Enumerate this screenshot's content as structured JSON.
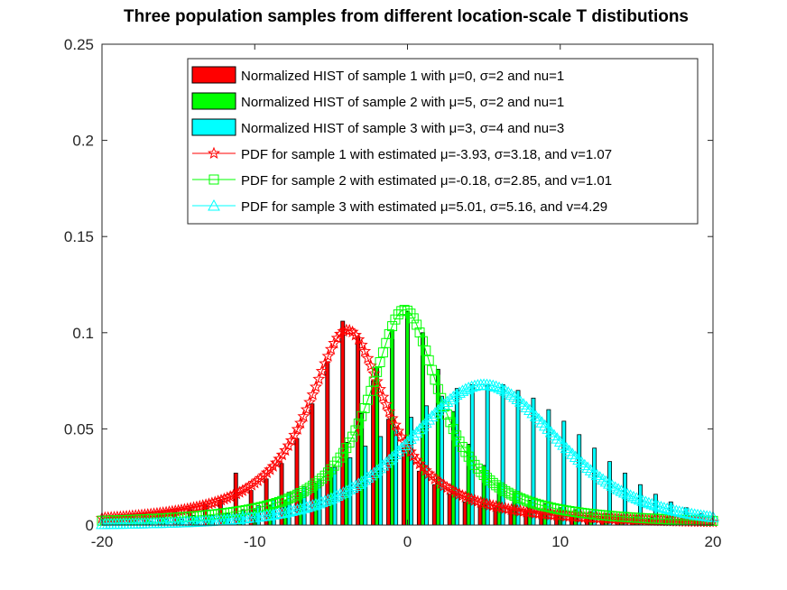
{
  "chart_data": {
    "type": "bar",
    "title": "Three population samples from different location-scale T distibutions",
    "xlabel": "",
    "ylabel": "",
    "xlim": [
      -20,
      20
    ],
    "ylim": [
      0,
      0.25
    ],
    "xticks": [
      -20,
      -10,
      0,
      10,
      20
    ],
    "yticks": [
      0,
      0.05,
      0.1,
      0.15,
      0.2,
      0.25
    ],
    "xtick_labels": [
      "-20",
      "-10",
      "0",
      "10",
      "20"
    ],
    "ytick_labels": [
      "0",
      "0.05",
      "0.1",
      "0.15",
      "0.2",
      "0.25"
    ],
    "grid": false,
    "legend_position": "top-right",
    "histograms": [
      {
        "name": "Normalized HIST of sample 1 with μ=0, σ=2 and nu=1",
        "color": "#ff0000",
        "mu": 0,
        "sigma": 2,
        "nu": 1
      },
      {
        "name": "Normalized HIST of sample 2 with μ=5, σ=2 and nu=1",
        "color": "#00ff00",
        "mu": 5,
        "sigma": 2,
        "nu": 1
      },
      {
        "name": "Normalized HIST of sample 3 with μ=3, σ=4 and nu=3",
        "color": "#00ffff",
        "mu": 3,
        "sigma": 4,
        "nu": 3
      }
    ],
    "hist_bin_centers": [
      -20,
      -19,
      -18,
      -17,
      -16,
      -15,
      -14,
      -13,
      -12,
      -11,
      -10,
      -9,
      -8,
      -7,
      -6,
      -5,
      -4,
      -3,
      -2,
      -1,
      0,
      1,
      2,
      3,
      4,
      5,
      6,
      7,
      8,
      9,
      10,
      11,
      12,
      13,
      14,
      15,
      16,
      17,
      18,
      19,
      20
    ],
    "hist_values": [
      [
        0.004,
        0.005,
        0.005,
        0.006,
        0.006,
        0.007,
        0.008,
        0.011,
        0.013,
        0.027,
        0.018,
        0.024,
        0.032,
        0.045,
        0.063,
        0.085,
        0.106,
        0.098,
        0.075,
        0.055,
        0.041,
        0.028,
        0.021,
        0.016,
        0.012,
        0.01,
        0.009,
        0.008,
        0.007,
        0.006,
        0.005,
        0.005,
        0.005,
        0.004,
        0.004,
        0.004,
        0.003,
        0.003,
        0.003,
        0.003,
        0.002
      ],
      [
        0.003,
        0.003,
        0.004,
        0.004,
        0.004,
        0.004,
        0.005,
        0.005,
        0.006,
        0.006,
        0.008,
        0.01,
        0.013,
        0.017,
        0.022,
        0.03,
        0.043,
        0.058,
        0.082,
        0.101,
        0.111,
        0.1,
        0.081,
        0.059,
        0.042,
        0.031,
        0.022,
        0.017,
        0.013,
        0.011,
        0.009,
        0.008,
        0.007,
        0.006,
        0.005,
        0.005,
        0.004,
        0.004,
        0.004,
        0.003,
        0.003
      ],
      [
        0.001,
        0.002,
        0.002,
        0.002,
        0.003,
        0.003,
        0.004,
        0.005,
        0.006,
        0.008,
        0.01,
        0.013,
        0.017,
        0.02,
        0.024,
        0.03,
        0.035,
        0.041,
        0.046,
        0.051,
        0.056,
        0.062,
        0.067,
        0.071,
        0.073,
        0.073,
        0.073,
        0.07,
        0.066,
        0.06,
        0.054,
        0.047,
        0.04,
        0.033,
        0.027,
        0.021,
        0.016,
        0.012,
        0.009,
        0.006,
        0.004
      ]
    ],
    "pdf_series": [
      {
        "name": "PDF for sample 1 with estimated μ=-3.93, σ=3.18, and v=1.07",
        "color": "#ff0000",
        "marker": "star",
        "mu": -3.93,
        "sigma": 3.18,
        "nu": 1.07
      },
      {
        "name": "PDF for sample 2 with estimated μ=-0.18, σ=2.85, and v=1.01",
        "color": "#00ff00",
        "marker": "square",
        "mu": -0.18,
        "sigma": 2.85,
        "nu": 1.01
      },
      {
        "name": "PDF for sample 3 with estimated μ=5.01, σ=5.16, and v=4.29",
        "color": "#00ffff",
        "marker": "triangle",
        "mu": 5.01,
        "sigma": 5.16,
        "nu": 4.29
      }
    ]
  }
}
